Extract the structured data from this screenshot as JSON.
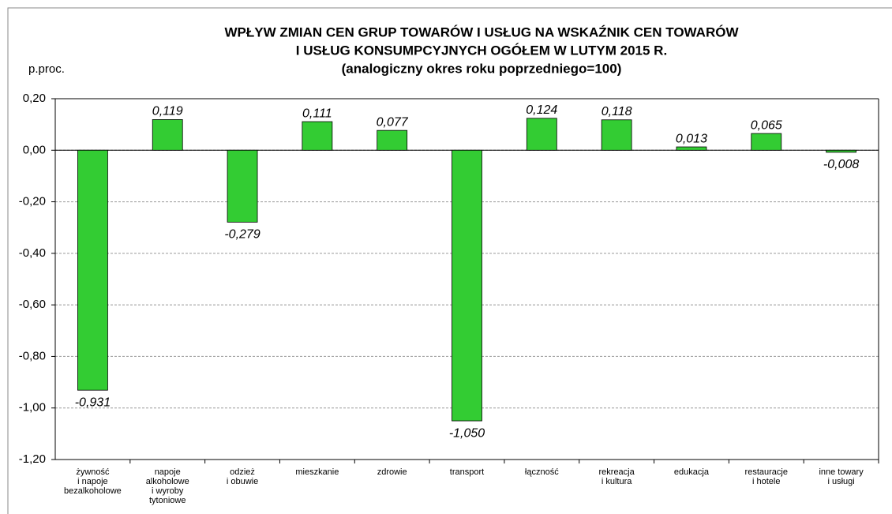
{
  "chart_data": {
    "type": "bar",
    "title": "WPŁYW ZMIAN CEN GRUP TOWARÓW I USŁUG NA WSKAŹNIK CEN TOWARÓW",
    "subtitle": "I USŁUG KONSUMPCYJNYCH OGÓŁEM W LUTYM 2015 R.",
    "note": "(analogiczny okres roku poprzedniego=100)",
    "y_label": "p.proc.",
    "categories": [
      "żywność\ni napoje\nbezalkoholowe",
      "napoje\nalkoholowe\ni wyroby\ntytoniowe",
      "odzież\ni obuwie",
      "mieszkanie",
      "zdrowie",
      "transport",
      "łączność",
      "rekreacja\ni kultura",
      "edukacja",
      "restauracje\ni hotele",
      "inne towary\ni usługi"
    ],
    "values": [
      -0.931,
      0.119,
      -0.279,
      0.111,
      0.077,
      -1.05,
      0.124,
      0.118,
      0.013,
      0.065,
      -0.008
    ],
    "value_labels": [
      "-0,931",
      "0,119",
      "-0,279",
      "0,111",
      "0,077",
      "-1,050",
      "0,124",
      "0,118",
      "0,013",
      "0,065",
      "-0,008"
    ],
    "color": "#33cc33",
    "ylim": [
      -1.2,
      0.2
    ],
    "yticks": [
      {
        "value": 0.2,
        "label": "0,20"
      },
      {
        "value": 0,
        "label": "0,00"
      },
      {
        "value": -0.2,
        "label": "-0,20"
      },
      {
        "value": -0.4,
        "label": "-0,40"
      },
      {
        "value": -0.6,
        "label": "-0,60"
      },
      {
        "value": -0.8,
        "label": "-0,80"
      },
      {
        "value": -1,
        "label": "-1,00"
      },
      {
        "value": -1.2,
        "label": "-1,20"
      }
    ],
    "grid": true
  }
}
